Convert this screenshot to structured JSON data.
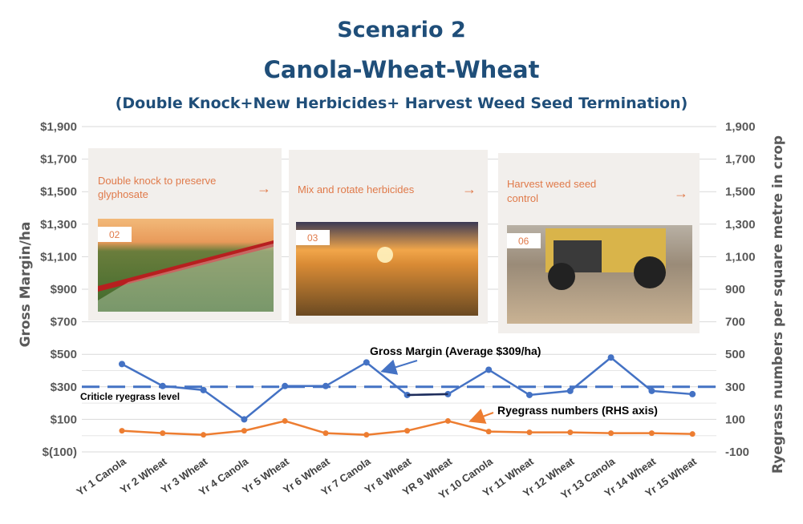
{
  "header": {
    "title": "Scenario 2",
    "subtitle": "Canola-Wheat-Wheat",
    "caption": "(Double Knock+New Herbicides+ Harvest Weed Seed Termination)"
  },
  "axes": {
    "left_title": "Gross Margin/ha",
    "right_title": "Ryegrass numbers per square metre in crop",
    "left_ticks": [
      "$1,900",
      "$1,700",
      "$1,500",
      "$1,300",
      "$1,100",
      "$900",
      "$700",
      "$500",
      "$300",
      "$100",
      "$(100)"
    ],
    "right_ticks": [
      "1,900",
      "1,700",
      "1,500",
      "1,300",
      "1,100",
      "900",
      "700",
      "500",
      "300",
      "100",
      "-100"
    ]
  },
  "chart_data": {
    "type": "line",
    "categories": [
      "Yr 1  Canola",
      "Yr 2 Wheat",
      "Yr 3 Wheat",
      "Yr 4 Canola",
      "Yr 5 Wheat",
      "Yr 6 Wheat",
      "Yr 7 Canola",
      "Yr 8 Wheat",
      "YR 9  Wheat",
      "Yr 10 Canola",
      "Yr 11 Wheat",
      "Yr 12 Wheat",
      "Yr 13 Canola",
      "Yr 14 Wheat",
      "Yr 15 Wheat"
    ],
    "y_left_range": [
      -100,
      1900
    ],
    "y_right_range": [
      -100,
      1900
    ],
    "grid": "horizontal",
    "series": [
      {
        "name": "Gross Margin (Average $309/ha)",
        "axis": "left",
        "color": "#4472c4",
        "values": [
          440,
          305,
          280,
          100,
          305,
          305,
          450,
          250,
          255,
          405,
          250,
          275,
          480,
          275,
          255
        ]
      },
      {
        "name": "Ryegrass numbers (RHS axis)",
        "axis": "right",
        "color": "#ed7d31",
        "values": [
          30,
          15,
          5,
          30,
          90,
          15,
          5,
          30,
          90,
          25,
          20,
          20,
          15,
          15,
          10
        ]
      }
    ],
    "reference_line": {
      "label": "Criticle ryegrass level",
      "value": 300,
      "color": "#4472c4",
      "style": "dashed"
    },
    "annotations": {
      "gross_margin": "Gross Margin (Average $309/ha)",
      "ryegrass": "Ryegrass numbers (RHS axis)"
    }
  },
  "cards": [
    {
      "text_lines": [
        "Double knock to preserve",
        "glyphosate"
      ],
      "badge": "02",
      "arrow": "→"
    },
    {
      "text_lines": [
        "Mix and rotate herbicides"
      ],
      "badge": "03",
      "arrow": "→"
    },
    {
      "text_lines": [
        "Harvest weed seed",
        "control"
      ],
      "badge": "06",
      "arrow": "→"
    }
  ],
  "colors": {
    "title": "#1f4e79",
    "gross_margin": "#4472c4",
    "ryegrass": "#ed7d31",
    "card_accent": "#e07a4a"
  }
}
